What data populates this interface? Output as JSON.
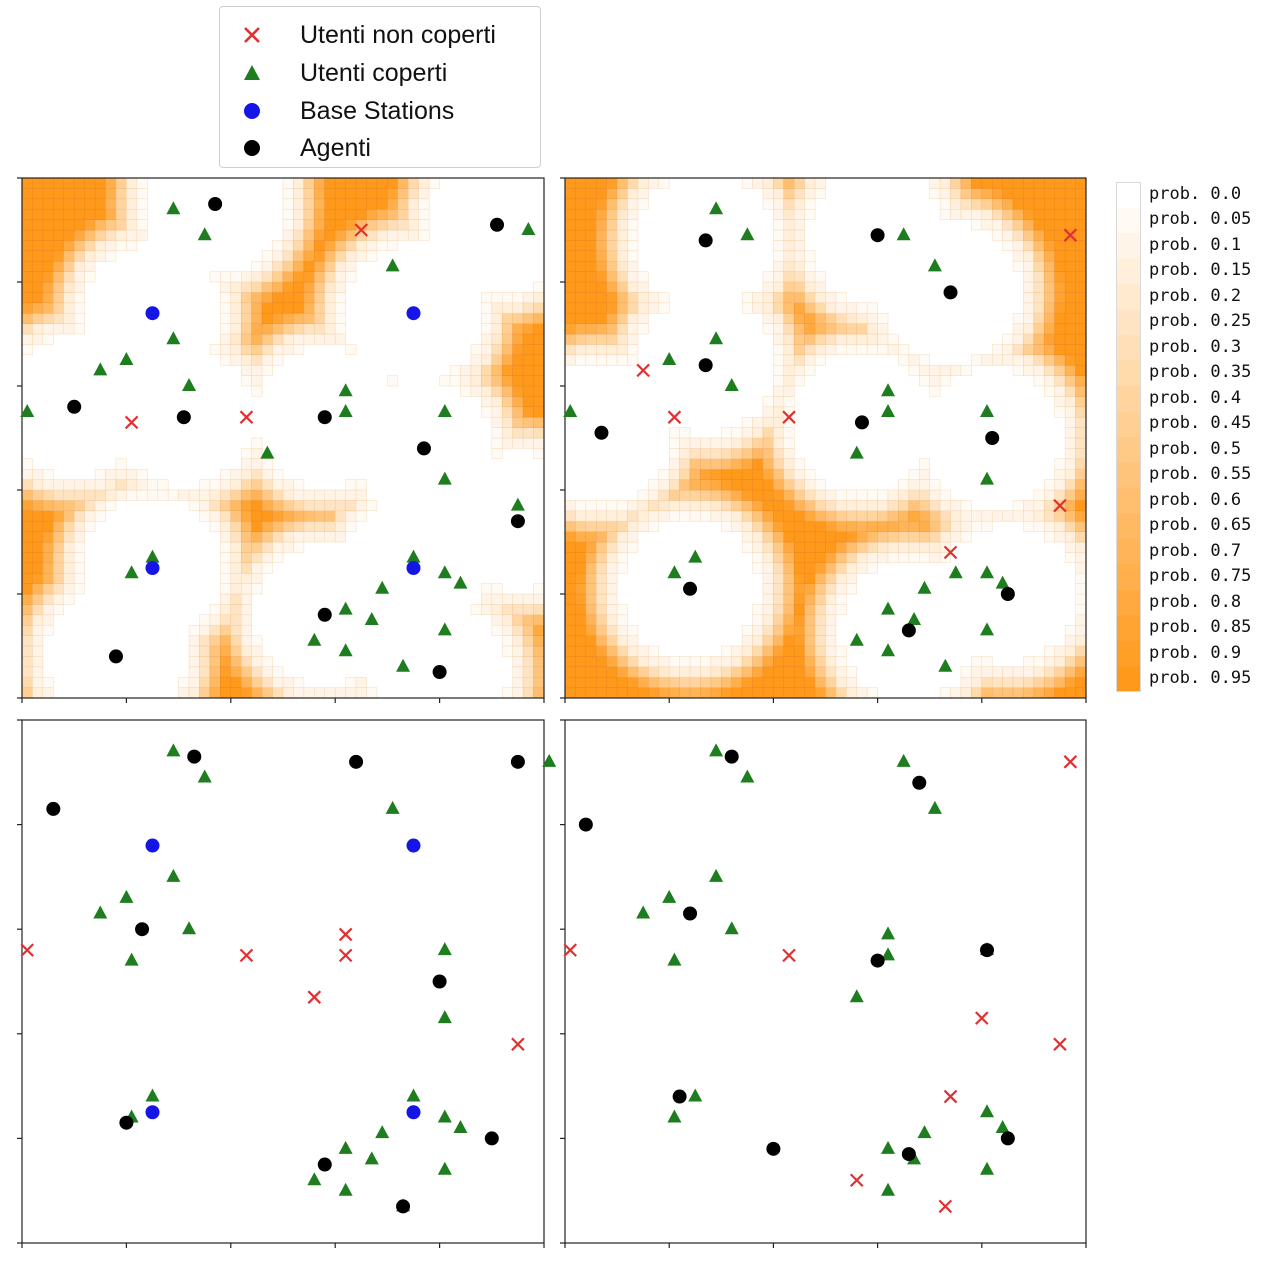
{
  "legend": {
    "items": [
      {
        "label": "Utenti non coperti",
        "marker": "x",
        "color": "#e23030"
      },
      {
        "label": "Utenti coperti",
        "marker": "triangle",
        "color": "#1e7d1e"
      },
      {
        "label": "Base Stations",
        "marker": "circle",
        "color": "#1515e8"
      },
      {
        "label": "Agenti",
        "marker": "circle",
        "color": "#000000"
      }
    ]
  },
  "colors": {
    "uncovered": "#e23030",
    "covered": "#1e7d1e",
    "base_station": "#1515e8",
    "agent": "#000000",
    "heat_max": "#f7940f"
  },
  "colorbar": {
    "labels": [
      "prob. 0.0",
      "prob. 0.05",
      "prob. 0.1",
      "prob. 0.15",
      "prob. 0.2",
      "prob. 0.25",
      "prob. 0.3",
      "prob. 0.35",
      "prob. 0.4",
      "prob. 0.45",
      "prob. 0.5",
      "prob. 0.55",
      "prob. 0.6",
      "prob. 0.65",
      "prob. 0.7",
      "prob. 0.75",
      "prob. 0.8",
      "prob. 0.85",
      "prob. 0.9",
      "prob. 0.95"
    ]
  },
  "chart_data": [
    {
      "type": "scatter",
      "panel": "top-left",
      "heatmap": true,
      "coverage_radius": 1.3,
      "xlim": [
        0,
        10
      ],
      "ylim": [
        0,
        10
      ],
      "uncovered": [
        [
          6.5,
          9.0
        ],
        [
          2.1,
          5.3
        ],
        [
          4.3,
          5.4
        ]
      ],
      "covered": [
        [
          2.9,
          9.4
        ],
        [
          3.5,
          8.9
        ],
        [
          7.1,
          8.3
        ],
        [
          9.7,
          9.0
        ],
        [
          2.9,
          6.9
        ],
        [
          2.0,
          6.5
        ],
        [
          1.5,
          6.3
        ],
        [
          3.2,
          6.0
        ],
        [
          0.1,
          5.5
        ],
        [
          6.2,
          5.9
        ],
        [
          6.2,
          5.5
        ],
        [
          4.7,
          4.7
        ],
        [
          8.1,
          5.5
        ],
        [
          8.1,
          4.2
        ],
        [
          9.5,
          3.7
        ],
        [
          2.5,
          2.7
        ],
        [
          2.1,
          2.4
        ],
        [
          7.5,
          2.7
        ],
        [
          8.1,
          2.4
        ],
        [
          8.4,
          2.2
        ],
        [
          6.9,
          2.1
        ],
        [
          6.2,
          1.7
        ],
        [
          6.7,
          1.5
        ],
        [
          8.1,
          1.3
        ],
        [
          5.6,
          1.1
        ],
        [
          6.2,
          0.9
        ],
        [
          7.3,
          0.6
        ]
      ],
      "base_stations": [
        [
          2.5,
          7.4
        ],
        [
          7.5,
          7.4
        ],
        [
          2.5,
          2.5
        ],
        [
          7.5,
          2.5
        ]
      ],
      "agents": [
        [
          3.7,
          9.5
        ],
        [
          9.1,
          9.1
        ],
        [
          1.0,
          5.6
        ],
        [
          3.1,
          5.4
        ],
        [
          5.8,
          5.4
        ],
        [
          7.7,
          4.8
        ],
        [
          9.5,
          3.4
        ],
        [
          5.8,
          1.6
        ],
        [
          1.8,
          0.8
        ],
        [
          8.0,
          0.5
        ]
      ]
    },
    {
      "type": "scatter",
      "panel": "top-right",
      "heatmap": true,
      "coverage_radius": 1.3,
      "xlim": [
        0,
        10
      ],
      "ylim": [
        0,
        10
      ],
      "uncovered": [
        [
          9.7,
          8.9
        ],
        [
          1.5,
          6.3
        ],
        [
          2.1,
          5.4
        ],
        [
          4.3,
          5.4
        ],
        [
          9.5,
          3.7
        ],
        [
          7.4,
          2.8
        ]
      ],
      "covered": [
        [
          2.9,
          9.4
        ],
        [
          3.5,
          8.9
        ],
        [
          6.5,
          8.9
        ],
        [
          7.1,
          8.3
        ],
        [
          2.9,
          6.9
        ],
        [
          2.0,
          6.5
        ],
        [
          3.2,
          6.0
        ],
        [
          0.1,
          5.5
        ],
        [
          6.2,
          5.9
        ],
        [
          6.2,
          5.5
        ],
        [
          5.6,
          4.7
        ],
        [
          8.1,
          5.5
        ],
        [
          8.1,
          4.2
        ],
        [
          2.5,
          2.7
        ],
        [
          2.1,
          2.4
        ],
        [
          7.5,
          2.4
        ],
        [
          8.1,
          2.4
        ],
        [
          8.4,
          2.2
        ],
        [
          6.9,
          2.1
        ],
        [
          6.2,
          1.7
        ],
        [
          6.7,
          1.5
        ],
        [
          8.1,
          1.3
        ],
        [
          5.6,
          1.1
        ],
        [
          6.2,
          0.9
        ],
        [
          7.3,
          0.6
        ]
      ],
      "base_stations": [],
      "agents": [
        [
          2.7,
          8.8
        ],
        [
          6.0,
          8.9
        ],
        [
          7.4,
          7.8
        ],
        [
          2.7,
          6.4
        ],
        [
          0.7,
          5.1
        ],
        [
          5.7,
          5.3
        ],
        [
          8.2,
          5.0
        ],
        [
          2.4,
          2.1
        ],
        [
          8.5,
          2.0
        ],
        [
          6.6,
          1.3
        ]
      ]
    },
    {
      "type": "scatter",
      "panel": "bottom-left",
      "heatmap": false,
      "xlim": [
        0,
        10
      ],
      "ylim": [
        0,
        10
      ],
      "uncovered": [
        [
          0.1,
          5.6
        ],
        [
          4.3,
          5.5
        ],
        [
          6.2,
          5.9
        ],
        [
          6.2,
          5.5
        ],
        [
          5.6,
          4.7
        ],
        [
          9.5,
          3.8
        ]
      ],
      "covered": [
        [
          2.9,
          9.4
        ],
        [
          3.5,
          8.9
        ],
        [
          10.1,
          9.2
        ],
        [
          7.1,
          8.3
        ],
        [
          2.9,
          7.0
        ],
        [
          2.0,
          6.6
        ],
        [
          1.5,
          6.3
        ],
        [
          3.2,
          6.0
        ],
        [
          2.1,
          5.4
        ],
        [
          8.1,
          5.6
        ],
        [
          8.1,
          4.3
        ],
        [
          2.5,
          2.8
        ],
        [
          2.1,
          2.4
        ],
        [
          7.5,
          2.8
        ],
        [
          8.1,
          2.4
        ],
        [
          8.4,
          2.2
        ],
        [
          6.9,
          2.1
        ],
        [
          6.2,
          1.8
        ],
        [
          6.7,
          1.6
        ],
        [
          8.1,
          1.4
        ],
        [
          5.6,
          1.2
        ],
        [
          6.2,
          1.0
        ],
        [
          7.3,
          0.7
        ]
      ],
      "base_stations": [
        [
          2.5,
          7.6
        ],
        [
          7.5,
          7.6
        ],
        [
          2.5,
          2.5
        ],
        [
          7.5,
          2.5
        ]
      ],
      "agents": [
        [
          3.3,
          9.3
        ],
        [
          6.4,
          9.2
        ],
        [
          9.5,
          9.2
        ],
        [
          0.6,
          8.3
        ],
        [
          2.3,
          6.0
        ],
        [
          8.0,
          5.0
        ],
        [
          2.0,
          2.3
        ],
        [
          9.0,
          2.0
        ],
        [
          5.8,
          1.5
        ],
        [
          7.3,
          0.7
        ]
      ]
    },
    {
      "type": "scatter",
      "panel": "bottom-right",
      "heatmap": false,
      "xlim": [
        0,
        10
      ],
      "ylim": [
        0,
        10
      ],
      "uncovered": [
        [
          9.7,
          9.2
        ],
        [
          0.1,
          5.6
        ],
        [
          4.3,
          5.5
        ],
        [
          8.0,
          4.3
        ],
        [
          9.5,
          3.8
        ],
        [
          7.4,
          2.8
        ],
        [
          5.6,
          1.2
        ],
        [
          7.3,
          0.7
        ]
      ],
      "covered": [
        [
          2.9,
          9.4
        ],
        [
          3.5,
          8.9
        ],
        [
          6.5,
          9.2
        ],
        [
          7.1,
          8.3
        ],
        [
          2.9,
          7.0
        ],
        [
          2.0,
          6.6
        ],
        [
          1.5,
          6.3
        ],
        [
          3.2,
          6.0
        ],
        [
          2.1,
          5.4
        ],
        [
          6.2,
          5.9
        ],
        [
          6.2,
          5.5
        ],
        [
          5.6,
          4.7
        ],
        [
          8.1,
          5.6
        ],
        [
          2.5,
          2.8
        ],
        [
          2.1,
          2.4
        ],
        [
          8.1,
          2.5
        ],
        [
          8.4,
          2.2
        ],
        [
          6.9,
          2.1
        ],
        [
          6.2,
          1.8
        ],
        [
          6.7,
          1.6
        ],
        [
          8.1,
          1.4
        ],
        [
          6.2,
          1.0
        ]
      ],
      "base_stations": [],
      "agents": [
        [
          3.2,
          9.3
        ],
        [
          6.8,
          8.8
        ],
        [
          0.4,
          8.0
        ],
        [
          2.4,
          6.3
        ],
        [
          6.0,
          5.4
        ],
        [
          8.1,
          5.6
        ],
        [
          2.2,
          2.8
        ],
        [
          4.0,
          1.8
        ],
        [
          6.6,
          1.7
        ],
        [
          8.5,
          2.0
        ]
      ]
    }
  ]
}
